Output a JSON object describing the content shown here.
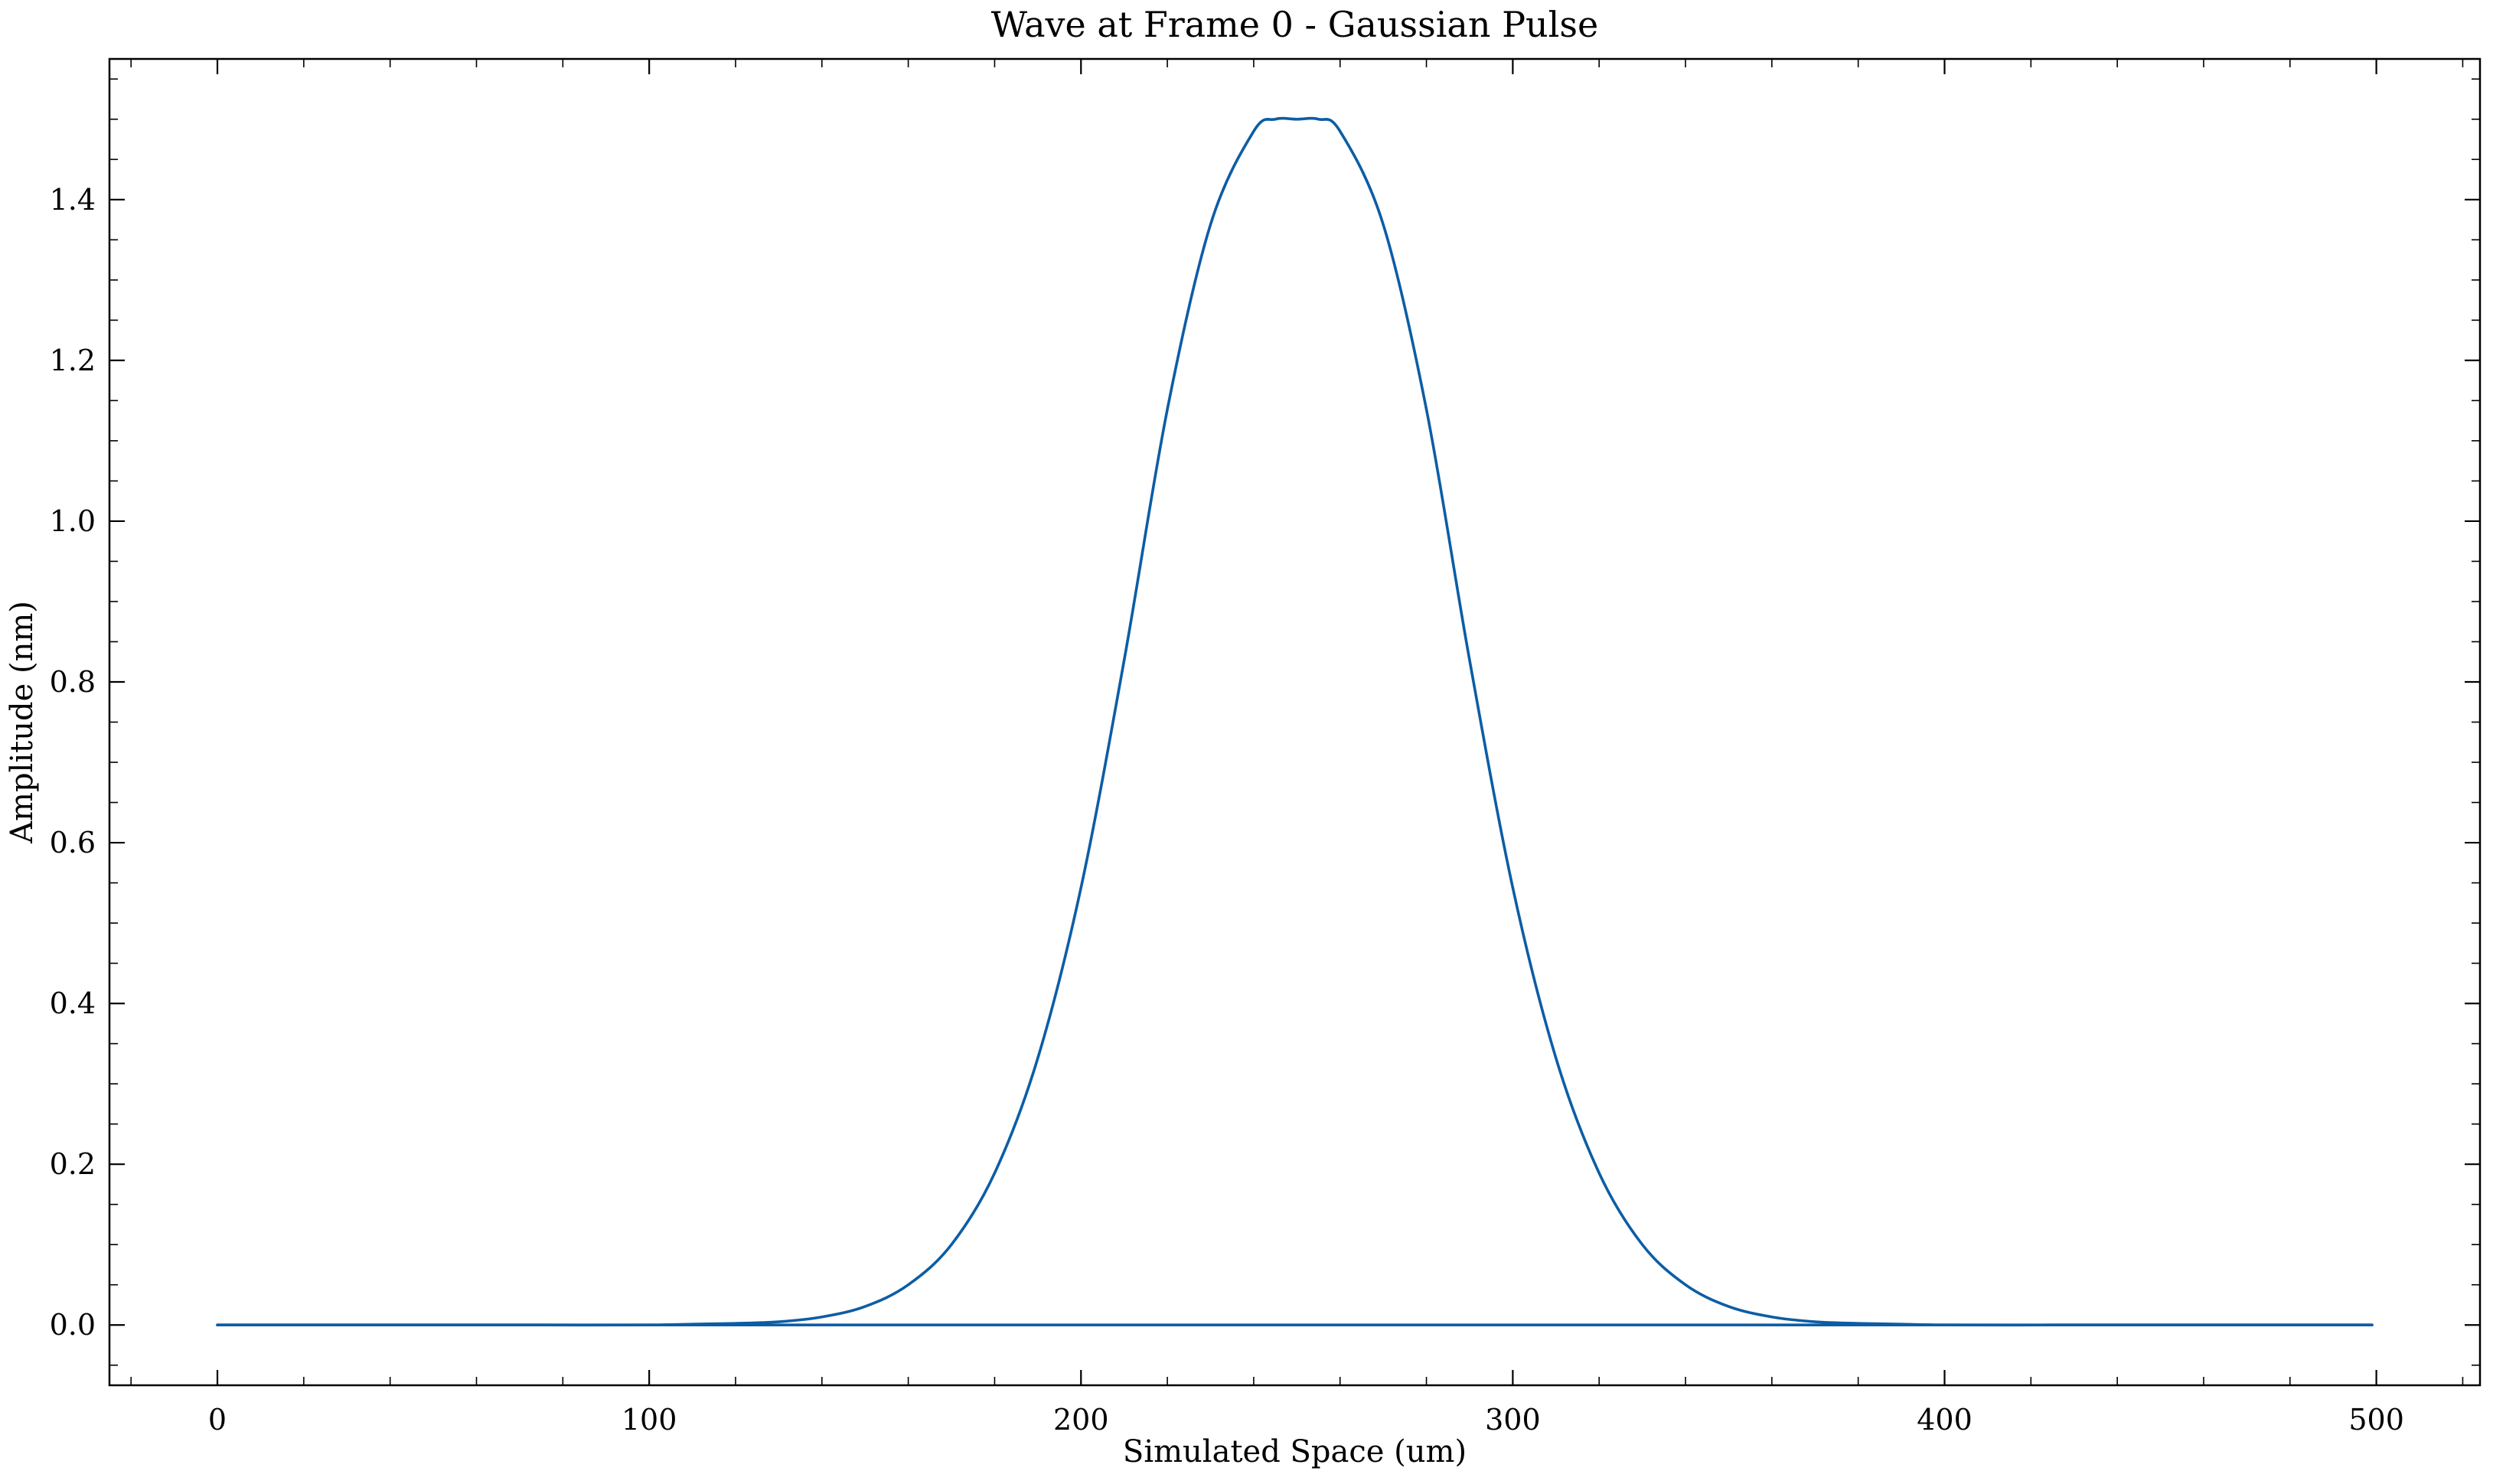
{
  "chart_data": {
    "type": "line",
    "title": "Wave at Frame 0 - Gaussian Pulse",
    "xlabel": "Simulated Space (um)",
    "ylabel": "Amplitude (nm)",
    "xlim": [
      -25,
      524
    ],
    "ylim": [
      -0.075,
      1.575
    ],
    "xticks": [
      0,
      100,
      200,
      300,
      400,
      500
    ],
    "xtick_labels": [
      "0",
      "100",
      "200",
      "300",
      "400",
      "500"
    ],
    "yticks": [
      0.0,
      0.2,
      0.4,
      0.6,
      0.8,
      1.0,
      1.2,
      1.4
    ],
    "ytick_labels": [
      "0.0",
      "0.2",
      "0.4",
      "0.6",
      "0.8",
      "1.0",
      "1.2",
      "1.4"
    ],
    "grid": false,
    "line_color": "#0C5DA5",
    "series": [
      {
        "x": [
          0,
          25,
          50,
          75,
          100,
          110,
          120,
          130,
          140,
          150,
          160,
          170,
          180,
          190,
          200,
          210,
          220,
          230,
          240,
          245,
          250,
          255,
          260,
          270,
          280,
          290,
          300,
          310,
          320,
          330,
          340,
          350,
          360,
          370,
          380,
          390,
          400,
          425,
          450,
          475,
          499
        ],
        "y": [
          0.0,
          0.0,
          0.0,
          0.0,
          0.0,
          0.001,
          0.002,
          0.004,
          0.01,
          0.023,
          0.05,
          0.1,
          0.189,
          0.332,
          0.544,
          0.827,
          1.139,
          1.369,
          1.485,
          1.5,
          1.5,
          1.5,
          1.485,
          1.369,
          1.139,
          0.827,
          0.544,
          0.332,
          0.189,
          0.1,
          0.05,
          0.023,
          0.01,
          0.004,
          0.002,
          0.001,
          0.0,
          0.0,
          0.0,
          0.0,
          0.0
        ]
      },
      {
        "x": [
          0,
          499
        ],
        "y": [
          0.0,
          0.0
        ]
      }
    ]
  }
}
